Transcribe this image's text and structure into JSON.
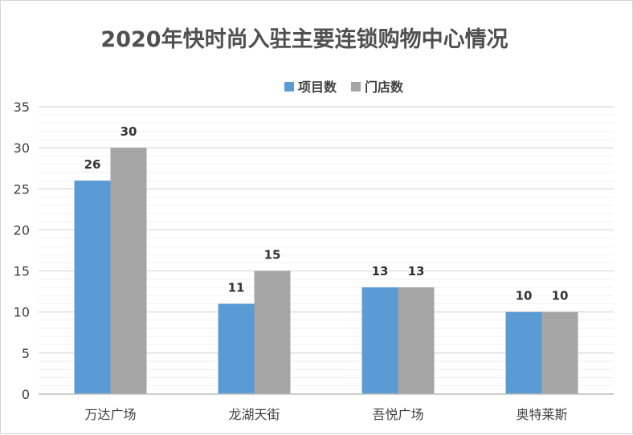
{
  "colors": {
    "series1": "#5b9bd5",
    "series2": "#a5a5a5",
    "grid": "#d9d9d9",
    "axis": "#bfbfbf"
  },
  "chart_data": {
    "type": "bar",
    "title": "2020年快时尚入驻主要连锁购物中心情况",
    "categories": [
      "万达广场",
      "龙湖天街",
      "吾悦广场",
      "奥特莱斯"
    ],
    "series": [
      {
        "name": "项目数",
        "values": [
          26,
          11,
          13,
          10
        ]
      },
      {
        "name": "门店数",
        "values": [
          30,
          15,
          13,
          10
        ]
      }
    ],
    "yticks": [
      0,
      5,
      10,
      15,
      20,
      25,
      30,
      35
    ],
    "ylim": [
      0,
      35
    ],
    "grid": true,
    "legend_position": "top-right"
  }
}
